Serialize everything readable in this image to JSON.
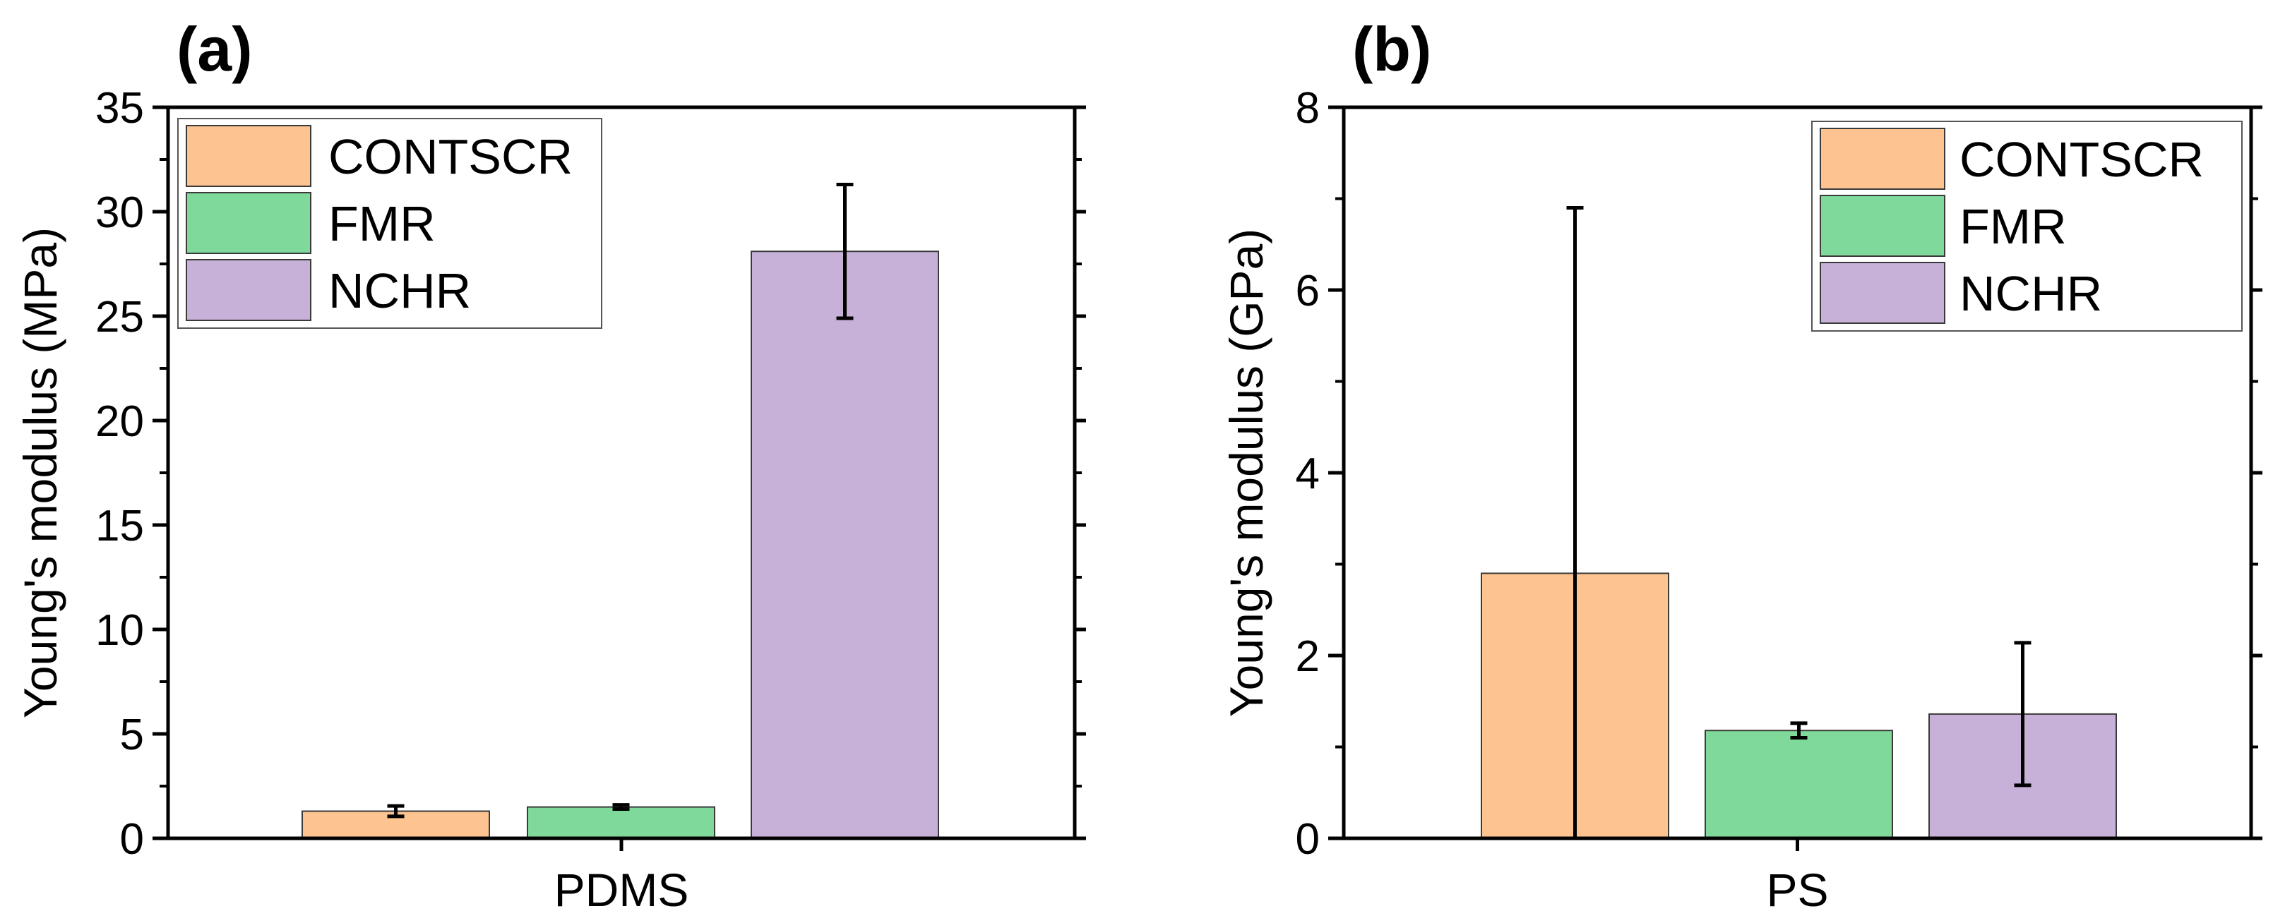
{
  "chart_data": [
    {
      "type": "bar",
      "panel_label": "(a)",
      "categories": [
        "PDMS"
      ],
      "series": [
        {
          "name": "CONTSCR",
          "color": "#fdc390",
          "values": [
            1.3
          ],
          "error": [
            0.25
          ]
        },
        {
          "name": "FMR",
          "color": "#7fd99a",
          "values": [
            1.5
          ],
          "error": [
            0.1
          ]
        },
        {
          "name": "NCHR",
          "color": "#c7b1d8",
          "values": [
            28.1
          ],
          "error": [
            3.2
          ]
        }
      ],
      "xlabel": "PDMS",
      "ylabel": "Young's modulus (MPa)",
      "ylim": [
        0,
        35
      ],
      "yticks": [
        0,
        5,
        10,
        15,
        20,
        25,
        30,
        35
      ],
      "yticklabels": [
        "0",
        "5",
        "10",
        "15",
        "20",
        "25",
        "30",
        "35"
      ],
      "legend": {
        "position": "top-left",
        "entries": [
          "CONTSCR",
          "FMR",
          "NCHR"
        ]
      }
    },
    {
      "type": "bar",
      "panel_label": "(b)",
      "categories": [
        "PS"
      ],
      "series": [
        {
          "name": "CONTSCR",
          "color": "#fdc390",
          "values": [
            2.9
          ],
          "error": [
            4.0
          ]
        },
        {
          "name": "FMR",
          "color": "#7fd99a",
          "values": [
            1.18
          ],
          "error": [
            0.08
          ]
        },
        {
          "name": "NCHR",
          "color": "#c7b1d8",
          "values": [
            1.36
          ],
          "error": [
            0.78
          ]
        }
      ],
      "xlabel": "PS",
      "ylabel": "Young's modulus (GPa)",
      "ylim": [
        0,
        8
      ],
      "yticks": [
        0,
        2,
        4,
        6,
        8
      ],
      "yticklabels": [
        "0",
        "2",
        "4",
        "6",
        "8"
      ],
      "legend": {
        "position": "top-right",
        "entries": [
          "CONTSCR",
          "FMR",
          "NCHR"
        ]
      }
    }
  ]
}
